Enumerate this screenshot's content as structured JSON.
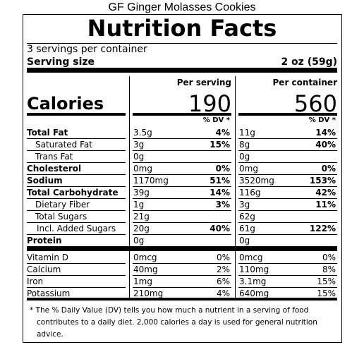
{
  "title": "GF Ginger Molasses Cookies",
  "label": {
    "heading": "Nutrition Facts",
    "servings_per_container": "3 servings per container",
    "serving_size_label": "Serving size",
    "serving_size": "2 oz (59g)",
    "per_serving_header": "Per serving",
    "per_container_header": "Per container",
    "calories_label": "Calories",
    "calories_per_serving": "190",
    "calories_per_container": "560",
    "dv_header_serving": "% DV *",
    "dv_header_container": "% DV *",
    "nutrients": [
      {
        "label": "Total Fat",
        "serving": "3.5g",
        "serving_dv": "4%",
        "container": "11g",
        "container_dv": "14%"
      },
      {
        "label": "Saturated Fat",
        "serving": "3g",
        "serving_dv": "15%",
        "container": "8g",
        "container_dv": "40%"
      },
      {
        "label": "Trans Fat",
        "serving": "0g",
        "container": "0g"
      },
      {
        "label": "Cholesterol",
        "serving": "0mg",
        "serving_dv": "0%",
        "container": "0mg",
        "container_dv": "0%"
      },
      {
        "label": "Sodium",
        "serving": "1170mg",
        "serving_dv": "51%",
        "container": "3520mg",
        "container_dv": "153%"
      },
      {
        "label": "Total Carbohydrate",
        "serving": "39g",
        "serving_dv": "14%",
        "container": "116g",
        "container_dv": "42%"
      },
      {
        "label": "Dietary Fiber",
        "serving": "1g",
        "serving_dv": "3%",
        "container": "3g",
        "container_dv": "11%"
      },
      {
        "label": "Total Sugars",
        "serving": "21g",
        "container": "62g"
      },
      {
        "label": "Incl. Added Sugars",
        "serving": "20g",
        "serving_dv": "40%",
        "container": "61g",
        "container_dv": "122%"
      },
      {
        "label": "Protein",
        "serving": "0g",
        "container": "0g"
      }
    ],
    "micronutrients": [
      {
        "label": "Vitamin D",
        "serving": "0mcg",
        "serving_dv": "0%",
        "container": "0mcg",
        "container_dv": "0%"
      },
      {
        "label": "Calcium",
        "serving": "40mg",
        "serving_dv": "2%",
        "container": "110mg",
        "container_dv": "8%"
      },
      {
        "label": "Iron",
        "serving": "1mg",
        "serving_dv": "6%",
        "container": "3.1mg",
        "container_dv": "15%"
      },
      {
        "label": "Potassium",
        "serving": "210mg",
        "serving_dv": "4%",
        "container": "640mg",
        "container_dv": "15%"
      }
    ],
    "footnote": "* The % Daily Value (DV) tells you how much a nutrient in a serving of food contributes to a daily diet. 2,000 calories a day is used for general nutrition advice."
  }
}
